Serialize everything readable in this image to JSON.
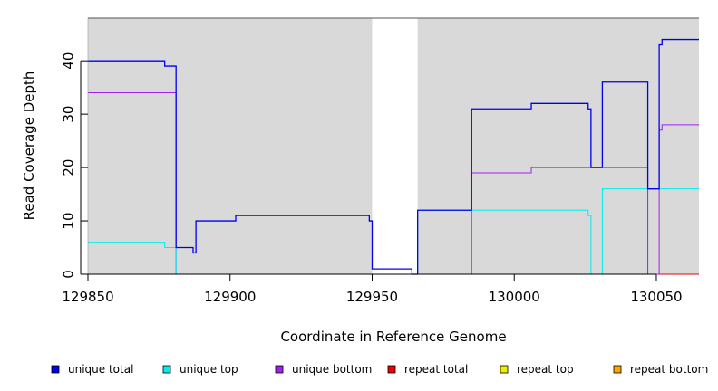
{
  "chart_data": {
    "type": "line",
    "step": true,
    "xlabel": "Coordinate in Reference Genome",
    "ylabel": "Read Coverage Depth",
    "xlim": [
      129850,
      130065
    ],
    "ylim": [
      0,
      48
    ],
    "xticks": [
      129850,
      129900,
      129950,
      130000,
      130050
    ],
    "yticks": [
      0,
      10,
      20,
      30,
      40
    ],
    "background": "#d9d9d9",
    "gap_region": [
      129950,
      129966
    ],
    "grid": false,
    "legend_position": "bottom",
    "series": [
      {
        "name": "unique total",
        "color": "#0000ee",
        "x": [
          129850,
          129877,
          129881,
          129887,
          129888,
          129902,
          129949,
          129950,
          129964,
          129966,
          129985,
          130006,
          130026,
          130027,
          130031,
          130047,
          130051,
          130052,
          130065
        ],
        "values": [
          40,
          39,
          5,
          4,
          10,
          11,
          10,
          1,
          0,
          12,
          31,
          32,
          31,
          20,
          36,
          16,
          43,
          44,
          44
        ]
      },
      {
        "name": "unique top",
        "color": "#00eeee",
        "x": [
          129850,
          129877,
          129881,
          129950,
          129966,
          130026,
          130027,
          130031,
          130065
        ],
        "values": [
          6,
          5,
          0,
          0,
          12,
          11,
          0,
          16,
          16
        ]
      },
      {
        "name": "unique bottom",
        "color": "#a020f0",
        "x": [
          129850,
          129881,
          129985,
          130006,
          130047,
          130051,
          130052,
          130065
        ],
        "values": [
          34,
          0,
          19,
          20,
          0,
          27,
          28,
          28
        ]
      },
      {
        "name": "repeat total",
        "color": "#ee0000",
        "x": [
          129850,
          130065
        ],
        "values": [
          0,
          0
        ]
      },
      {
        "name": "repeat top",
        "color": "#eeee00",
        "x": [
          129850,
          130065
        ],
        "values": [
          0,
          0
        ]
      },
      {
        "name": "repeat bottom",
        "color": "#ffa500",
        "x": [
          129850,
          130065
        ],
        "values": [
          0,
          0
        ]
      }
    ]
  }
}
